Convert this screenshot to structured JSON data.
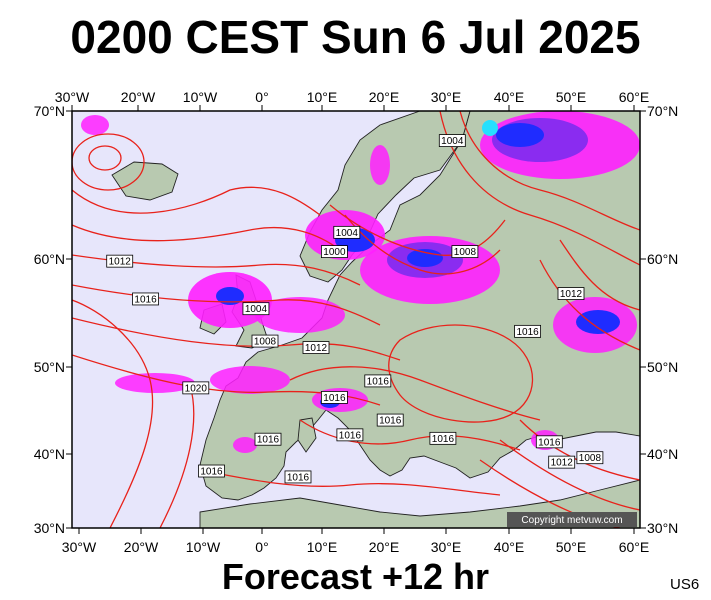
{
  "title": "0200 CEST Sun 6 Jul 2025",
  "footer": "Forecast +12 hr",
  "code": "US6",
  "copyright": "Copyright metvuw.com",
  "axes": {
    "lon_labels": [
      "30°W",
      "20°W",
      "10°W",
      "0°",
      "10°E",
      "20°E",
      "30°E",
      "40°E",
      "50°E",
      "60°E"
    ],
    "lat_labels": [
      "70°N",
      "60°N",
      "50°N",
      "40°N",
      "30°N"
    ]
  },
  "isobar_labels": [
    {
      "text": "1004",
      "lon": 31,
      "lat": 68
    },
    {
      "text": "1004",
      "lon": 14,
      "lat": 61.8
    },
    {
      "text": "1000",
      "lon": 12,
      "lat": 60.5
    },
    {
      "text": "1008",
      "lon": 33,
      "lat": 60.5
    },
    {
      "text": "1012",
      "lon": -23,
      "lat": 59.8
    },
    {
      "text": "1016",
      "lon": -19,
      "lat": 56.3
    },
    {
      "text": "1004",
      "lon": -1,
      "lat": 55.4
    },
    {
      "text": "1008",
      "lon": 0.5,
      "lat": 52.4
    },
    {
      "text": "1012",
      "lon": 9,
      "lat": 51.8
    },
    {
      "text": "1012",
      "lon": 50,
      "lat": 56.8
    },
    {
      "text": "1016",
      "lon": 43,
      "lat": 53.3
    },
    {
      "text": "1016",
      "lon": 19,
      "lat": 48.4
    },
    {
      "text": "1020",
      "lon": -11,
      "lat": 47.6
    },
    {
      "text": "1016",
      "lon": 12,
      "lat": 46.5
    },
    {
      "text": "1016",
      "lon": 21,
      "lat": 43.9
    },
    {
      "text": "1016",
      "lon": 1,
      "lat": 41.7
    },
    {
      "text": "1016",
      "lon": 14.5,
      "lat": 42.2
    },
    {
      "text": "1016",
      "lon": 29.5,
      "lat": 41.8
    },
    {
      "text": "1016",
      "lon": 46.5,
      "lat": 41.4
    },
    {
      "text": "1012",
      "lon": 48.5,
      "lat": 38.9
    },
    {
      "text": "1008",
      "lon": 53,
      "lat": 39.5
    },
    {
      "text": "1016",
      "lon": -8.5,
      "lat": 37.7
    },
    {
      "text": "1016",
      "lon": 6,
      "lat": 36.9
    }
  ],
  "colors": {
    "background": "#ffffff",
    "sea": "#e7e6fb",
    "land": "#b8c9b0",
    "isobar": "#e8221b",
    "precip_light": "#ff1fff",
    "precip_moderate": "#8a2cf0",
    "precip_heavy": "#1f2cff",
    "precip_extreme": "#26e0ff"
  },
  "legend_icons": [
    "precipitation-shading",
    "isobar-line"
  ]
}
